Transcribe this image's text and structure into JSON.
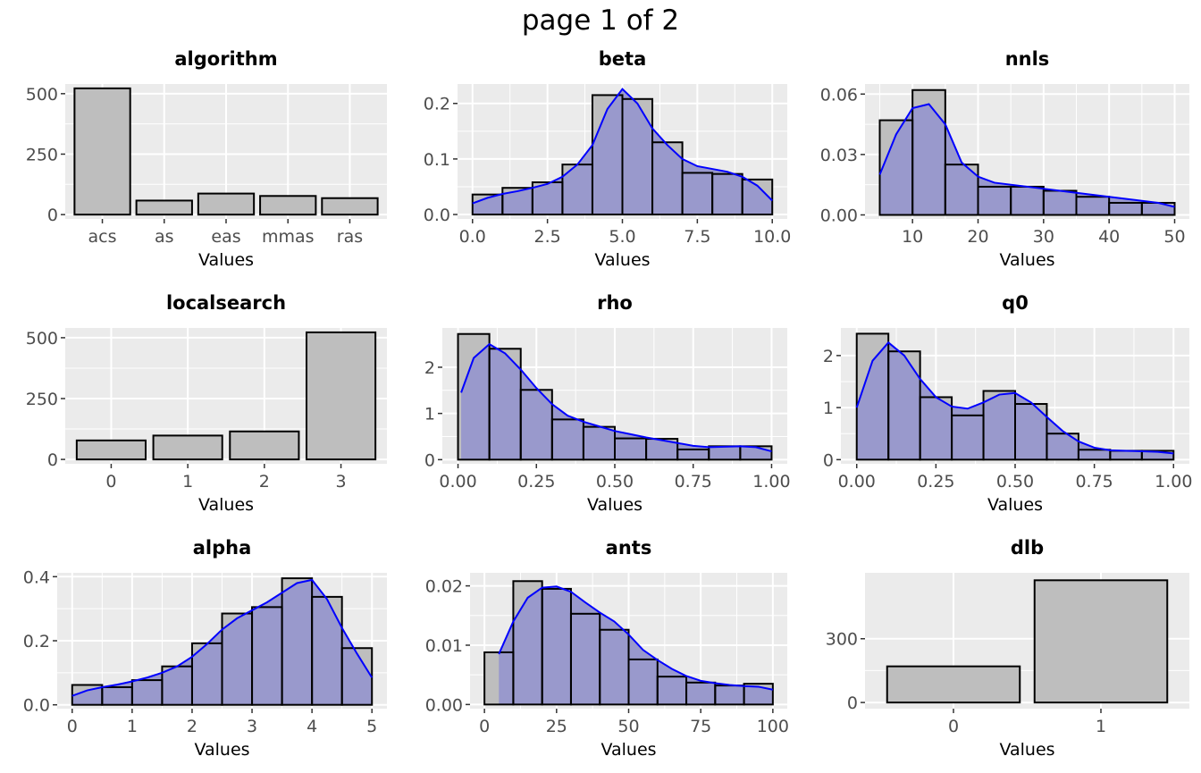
{
  "page_title": "page 1 of 2",
  "colors": {
    "panel_background": "#ebebeb",
    "grid": "#ffffff",
    "bar_fill": "#bebebe",
    "bar_outline": "#000000",
    "density_fill": "#9999cc",
    "density_line": "#0000ff",
    "tick_text": "#4d4d4d"
  },
  "chart_data": [
    {
      "id": "algorithm",
      "type": "bar",
      "title": "algorithm",
      "xlabel": "Values",
      "ylabel": "",
      "categories": [
        "acs",
        "as",
        "eas",
        "mmas",
        "ras"
      ],
      "values": [
        522,
        58,
        87,
        77,
        68
      ],
      "ylim": [
        -18,
        540
      ],
      "yticks": [
        0,
        250,
        500
      ],
      "ytick_labels": [
        "0",
        "250",
        "500"
      ],
      "grid": true
    },
    {
      "id": "beta",
      "type": "histogram",
      "title": "beta",
      "xlabel": "Values",
      "ylabel": "",
      "bin_edges": [
        0,
        1,
        2,
        3,
        4,
        5,
        6,
        7,
        8,
        9,
        10
      ],
      "values": [
        0.036,
        0.048,
        0.058,
        0.09,
        0.215,
        0.208,
        0.13,
        0.075,
        0.073,
        0.063
      ],
      "density": {
        "x": [
          0,
          0.5,
          1,
          1.5,
          2,
          2.5,
          3,
          3.5,
          4,
          4.5,
          5,
          5.5,
          6,
          6.5,
          7,
          7.5,
          8,
          8.5,
          9,
          9.5,
          10
        ],
        "y": [
          0.02,
          0.03,
          0.037,
          0.042,
          0.048,
          0.055,
          0.068,
          0.09,
          0.125,
          0.19,
          0.226,
          0.2,
          0.155,
          0.125,
          0.1,
          0.087,
          0.082,
          0.077,
          0.068,
          0.052,
          0.025
        ]
      },
      "xlim": [
        -0.5,
        10.5
      ],
      "ylim": [
        -0.008,
        0.235
      ],
      "xticks": [
        0,
        2.5,
        5,
        7.5,
        10
      ],
      "xtick_labels": [
        "0.0",
        "2.5",
        "5.0",
        "7.5",
        "10.0"
      ],
      "yticks": [
        0,
        0.1,
        0.2
      ],
      "ytick_labels": [
        "0.0",
        "0.1",
        "0.2"
      ],
      "grid": true
    },
    {
      "id": "nnls",
      "type": "histogram",
      "title": "nnls",
      "xlabel": "Values",
      "ylabel": "",
      "bin_edges": [
        5,
        10,
        15,
        20,
        25,
        30,
        35,
        40,
        45,
        50
      ],
      "values": [
        0.047,
        0.062,
        0.025,
        0.014,
        0.014,
        0.012,
        0.009,
        0.006,
        0.006
      ],
      "density": {
        "x": [
          5,
          7.5,
          10,
          12.5,
          15,
          17.5,
          20,
          22.5,
          25,
          27.5,
          30,
          32.5,
          35,
          37.5,
          40,
          42.5,
          45,
          47.5,
          50
        ],
        "y": [
          0.02,
          0.04,
          0.053,
          0.055,
          0.045,
          0.026,
          0.019,
          0.016,
          0.015,
          0.014,
          0.013,
          0.012,
          0.011,
          0.01,
          0.009,
          0.008,
          0.007,
          0.006,
          0.004
        ]
      },
      "xlim": [
        2.75,
        52.25
      ],
      "ylim": [
        -0.002,
        0.065
      ],
      "xticks": [
        10,
        20,
        30,
        40,
        50
      ],
      "xtick_labels": [
        "10",
        "20",
        "30",
        "40",
        "50"
      ],
      "yticks": [
        0,
        0.03,
        0.06
      ],
      "ytick_labels": [
        "0.00",
        "0.03",
        "0.06"
      ],
      "grid": true
    },
    {
      "id": "localsearch",
      "type": "bar",
      "title": "localsearch",
      "xlabel": "Values",
      "ylabel": "",
      "categories": [
        "0",
        "1",
        "2",
        "3"
      ],
      "values": [
        78,
        98,
        115,
        522
      ],
      "ylim": [
        -18,
        540
      ],
      "yticks": [
        0,
        250,
        500
      ],
      "ytick_labels": [
        "0",
        "250",
        "500"
      ],
      "grid": true
    },
    {
      "id": "rho",
      "type": "histogram",
      "title": "rho",
      "xlabel": "Values",
      "ylabel": "",
      "bin_edges": [
        0,
        0.1,
        0.2,
        0.3,
        0.4,
        0.5,
        0.6,
        0.7,
        0.8,
        0.9,
        1.0
      ],
      "values": [
        2.72,
        2.4,
        1.51,
        0.87,
        0.71,
        0.46,
        0.45,
        0.22,
        0.29,
        0.29
      ],
      "density": {
        "x": [
          0.01,
          0.05,
          0.1,
          0.15,
          0.2,
          0.25,
          0.3,
          0.35,
          0.4,
          0.45,
          0.5,
          0.55,
          0.6,
          0.65,
          0.7,
          0.75,
          0.8,
          0.85,
          0.9,
          0.95,
          1.0
        ],
        "y": [
          1.45,
          2.2,
          2.5,
          2.3,
          1.95,
          1.55,
          1.2,
          0.95,
          0.82,
          0.72,
          0.62,
          0.55,
          0.48,
          0.42,
          0.36,
          0.3,
          0.27,
          0.28,
          0.29,
          0.27,
          0.18
        ]
      },
      "xlim": [
        -0.05,
        1.05
      ],
      "ylim": [
        -0.09,
        2.85
      ],
      "xticks": [
        0,
        0.25,
        0.5,
        0.75,
        1.0
      ],
      "xtick_labels": [
        "0.00",
        "0.25",
        "0.50",
        "0.75",
        "1.00"
      ],
      "yticks": [
        0,
        1,
        2
      ],
      "ytick_labels": [
        "0",
        "1",
        "2"
      ],
      "grid": true
    },
    {
      "id": "q0",
      "type": "histogram",
      "title": "q0",
      "xlabel": "Values",
      "ylabel": "",
      "bin_edges": [
        0,
        0.1,
        0.2,
        0.3,
        0.4,
        0.5,
        0.6,
        0.7,
        0.8,
        0.9,
        1.0
      ],
      "values": [
        2.42,
        2.08,
        1.2,
        0.85,
        1.32,
        1.07,
        0.5,
        0.19,
        0.17,
        0.17
      ],
      "density": {
        "x": [
          0,
          0.05,
          0.1,
          0.15,
          0.2,
          0.25,
          0.3,
          0.35,
          0.4,
          0.45,
          0.5,
          0.55,
          0.6,
          0.65,
          0.7,
          0.75,
          0.8,
          0.85,
          0.9,
          0.95,
          1.0
        ],
        "y": [
          1.0,
          1.9,
          2.25,
          2.0,
          1.55,
          1.2,
          1.02,
          0.98,
          1.1,
          1.25,
          1.28,
          1.1,
          0.82,
          0.55,
          0.35,
          0.23,
          0.18,
          0.17,
          0.16,
          0.15,
          0.12
        ]
      },
      "xlim": [
        -0.05,
        1.05
      ],
      "ylim": [
        -0.08,
        2.53
      ],
      "xticks": [
        0,
        0.25,
        0.5,
        0.75,
        1.0
      ],
      "xtick_labels": [
        "0.00",
        "0.25",
        "0.50",
        "0.75",
        "1.00"
      ],
      "yticks": [
        0,
        1,
        2
      ],
      "ytick_labels": [
        "0",
        "1",
        "2"
      ],
      "grid": true
    },
    {
      "id": "alpha",
      "type": "histogram",
      "title": "alpha",
      "xlabel": "Values",
      "ylabel": "",
      "bin_edges": [
        0,
        0.5,
        1,
        1.5,
        2,
        2.5,
        3,
        3.5,
        4,
        4.5,
        5
      ],
      "values": [
        0.062,
        0.055,
        0.077,
        0.12,
        0.192,
        0.285,
        0.305,
        0.395,
        0.337,
        0.177
      ],
      "density": {
        "x": [
          0,
          0.25,
          0.5,
          0.75,
          1,
          1.25,
          1.5,
          1.75,
          2,
          2.25,
          2.5,
          2.75,
          3,
          3.25,
          3.5,
          3.75,
          4,
          4.25,
          4.5,
          4.75,
          5
        ],
        "y": [
          0.028,
          0.045,
          0.055,
          0.063,
          0.073,
          0.085,
          0.1,
          0.12,
          0.15,
          0.19,
          0.235,
          0.27,
          0.295,
          0.32,
          0.35,
          0.38,
          0.39,
          0.33,
          0.24,
          0.16,
          0.085
        ]
      },
      "xlim": [
        -0.25,
        5.25
      ],
      "ylim": [
        -0.012,
        0.412
      ],
      "xticks": [
        0,
        1,
        2,
        3,
        4,
        5
      ],
      "xtick_labels": [
        "0",
        "1",
        "2",
        "3",
        "4",
        "5"
      ],
      "yticks": [
        0,
        0.2,
        0.4
      ],
      "ytick_labels": [
        "0.0",
        "0.2",
        "0.4"
      ],
      "grid": true
    },
    {
      "id": "ants",
      "type": "histogram",
      "title": "ants",
      "xlabel": "Values",
      "ylabel": "",
      "bin_edges": [
        0,
        10,
        20,
        30,
        40,
        50,
        60,
        70,
        80,
        90,
        100
      ],
      "values": [
        0.0088,
        0.0208,
        0.0195,
        0.0153,
        0.0126,
        0.0076,
        0.0047,
        0.0037,
        0.0032,
        0.0035
      ],
      "density": {
        "x": [
          5,
          10,
          15,
          20,
          25,
          30,
          35,
          40,
          45,
          50,
          55,
          60,
          65,
          70,
          75,
          80,
          85,
          90,
          95,
          100
        ],
        "y": [
          0.0085,
          0.014,
          0.018,
          0.0197,
          0.0199,
          0.019,
          0.0172,
          0.0155,
          0.014,
          0.0118,
          0.0092,
          0.0075,
          0.006,
          0.0048,
          0.004,
          0.0036,
          0.0033,
          0.0031,
          0.003,
          0.0025
        ]
      },
      "xlim": [
        -5,
        105
      ],
      "ylim": [
        -0.0007,
        0.0222
      ],
      "xticks": [
        0,
        25,
        50,
        75,
        100
      ],
      "xtick_labels": [
        "0",
        "25",
        "50",
        "75",
        "100"
      ],
      "yticks": [
        0,
        0.01,
        0.02
      ],
      "ytick_labels": [
        "0.00",
        "0.01",
        "0.02"
      ],
      "grid": true
    },
    {
      "id": "dlb",
      "type": "bar",
      "title": "dlb",
      "xlabel": "Values",
      "ylabel": "",
      "categories": [
        "0",
        "1"
      ],
      "values": [
        170,
        575
      ],
      "ylim": [
        -29,
        610
      ],
      "yticks": [
        0,
        300
      ],
      "ytick_labels": [
        "0",
        "300"
      ],
      "grid": true
    }
  ]
}
